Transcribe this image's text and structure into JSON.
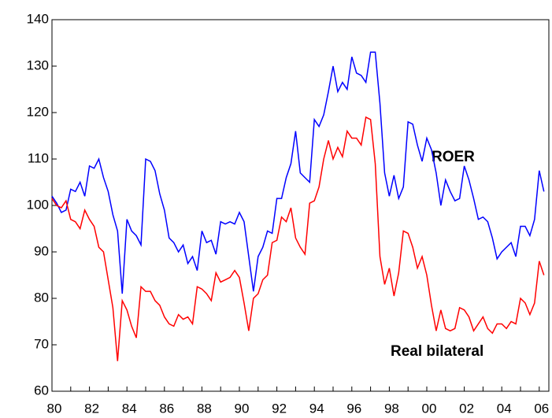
{
  "chart_data": {
    "type": "line",
    "categories": [
      "80",
      null,
      null,
      null,
      null,
      null,
      null,
      null,
      "82",
      null,
      null,
      null,
      null,
      null,
      null,
      null,
      "84",
      null,
      null,
      null,
      null,
      null,
      null,
      null,
      "86",
      null,
      null,
      null,
      null,
      null,
      null,
      null,
      "88",
      null,
      null,
      null,
      null,
      null,
      null,
      null,
      "90",
      null,
      null,
      null,
      null,
      null,
      null,
      null,
      "92",
      null,
      null,
      null,
      null,
      null,
      null,
      null,
      "94",
      null,
      null,
      null,
      null,
      null,
      null,
      null,
      "96",
      null,
      null,
      null,
      null,
      null,
      null,
      null,
      "98",
      null,
      null,
      null,
      null,
      null,
      null,
      null,
      "00",
      null,
      null,
      null,
      null,
      null,
      null,
      null,
      "02",
      null,
      null,
      null,
      null,
      null,
      null,
      null,
      "04",
      null,
      null,
      null,
      null,
      null,
      null,
      null,
      "06",
      null
    ],
    "series": [
      {
        "name": "ROER",
        "color": "#0000ff",
        "values": [
          102,
          100.5,
          98.5,
          99,
          103.5,
          103,
          105,
          102,
          108.5,
          108,
          110,
          106,
          103,
          98,
          94.5,
          81,
          97,
          94.5,
          93.5,
          91.5,
          110,
          109.5,
          107.5,
          102.5,
          99,
          93,
          92,
          90,
          91.5,
          87.5,
          89,
          86,
          94.5,
          92,
          92.5,
          89.5,
          96.5,
          96,
          96.5,
          96,
          98.5,
          96.5,
          89,
          81.5,
          89,
          91,
          94.5,
          94,
          101.5,
          101.5,
          106,
          109,
          116,
          107,
          106,
          105,
          118.5,
          117,
          119.5,
          124.5,
          130,
          124.5,
          126.5,
          125,
          132,
          128.5,
          128,
          126.5,
          133,
          133,
          122,
          107,
          102,
          106.5,
          101.5,
          104,
          118,
          117.5,
          113,
          109.5,
          114.5,
          112,
          107,
          100,
          105.5,
          103,
          101,
          101.5,
          108.5,
          105.5,
          101.5,
          97,
          97.5,
          96.5,
          93,
          88.5,
          90,
          91,
          92,
          89,
          95.5,
          95.5,
          93.5,
          97,
          107.5,
          103
        ]
      },
      {
        "name": "Real bilateral",
        "color": "#ff0000",
        "values": [
          101.5,
          100,
          99.5,
          101,
          97,
          96.5,
          95,
          99,
          97,
          95.5,
          91,
          90,
          84,
          78,
          66.5,
          79.5,
          77.5,
          74,
          71.5,
          82.5,
          81.5,
          81.5,
          79.5,
          78.5,
          76,
          74.5,
          74,
          76.5,
          75.5,
          76,
          74.5,
          82.5,
          82,
          81,
          79.5,
          85.5,
          83.5,
          84,
          84.5,
          86,
          84.5,
          79,
          73,
          80,
          81,
          84,
          85,
          92,
          92.5,
          97.5,
          96.5,
          99.5,
          93,
          91,
          89.5,
          100.5,
          101,
          104,
          110,
          114,
          110,
          112.5,
          110.5,
          116,
          114.5,
          114.5,
          113,
          119,
          118.5,
          109,
          89,
          83,
          86.5,
          80.5,
          85.5,
          94.5,
          94,
          91,
          86.5,
          89,
          85,
          78.5,
          73,
          77.5,
          73.5,
          73,
          73.5,
          78,
          77.5,
          76,
          73,
          74.5,
          76,
          73.5,
          72.5,
          74.5,
          74.5,
          73.5,
          75,
          74.5,
          80,
          79,
          76.5,
          79,
          88,
          85
        ]
      }
    ],
    "ylim": [
      60,
      140
    ],
    "yticks": [
      60,
      70,
      80,
      90,
      100,
      110,
      120,
      130,
      140
    ]
  }
}
